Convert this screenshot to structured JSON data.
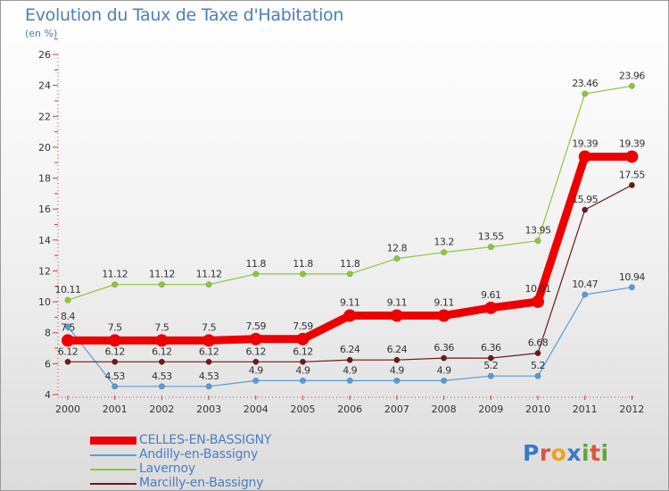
{
  "header": {
    "title": "Evolution du Taux de Taxe d'Habitation",
    "subtitle": "(en %)"
  },
  "logo": {
    "text": "Proxiti",
    "letters": [
      "P",
      "r",
      "o",
      "x",
      "i",
      "t",
      "i"
    ],
    "colors": [
      "#3b78c8",
      "#e0533a",
      "#f0a21c",
      "#3b78c8",
      "#5da83b",
      "#e0533a",
      "#5da83b"
    ]
  },
  "chart_data": {
    "type": "line",
    "categories": [
      "2000",
      "2001",
      "2002",
      "2003",
      "2004",
      "2005",
      "2006",
      "2007",
      "2008",
      "2009",
      "2010",
      "2011",
      "2012"
    ],
    "ylim": [
      4,
      26
    ],
    "yticks": [
      "4",
      "6",
      "8",
      "10",
      "12",
      "14",
      "16",
      "18",
      "20",
      "22",
      "24",
      "26"
    ],
    "grid": false,
    "legend_placement": "bottom-left",
    "series": [
      {
        "name": "Lavernoy",
        "color": "#8cc63f",
        "values": [
          10.11,
          11.12,
          11.12,
          11.12,
          11.8,
          11.8,
          11.8,
          12.8,
          13.2,
          13.55,
          13.95,
          23.46,
          23.96
        ],
        "labels": [
          "10.11",
          "11.12",
          "11.12",
          "11.12",
          "11.8",
          "11.8",
          "11.8",
          "12.8",
          "13.2",
          "13.55",
          "13.95",
          "23.46",
          "23.96"
        ]
      },
      {
        "name": "Andilly-en-Bassigny",
        "color": "#5b9bd5",
        "values": [
          8.4,
          4.53,
          4.53,
          4.53,
          4.9,
          4.9,
          4.9,
          4.9,
          4.9,
          5.2,
          5.2,
          10.47,
          10.94
        ],
        "labels": [
          "8.4",
          "4.53",
          "4.53",
          "4.53",
          "4.9",
          "4.9",
          "4.9",
          "4.9",
          "4.9",
          "5.2",
          "5.2",
          "10.47",
          "10.94"
        ]
      },
      {
        "name": "Marcilly-en-Bassigny",
        "color": "#6b1a1a",
        "values": [
          6.12,
          6.12,
          6.12,
          6.12,
          6.12,
          6.12,
          6.24,
          6.24,
          6.36,
          6.36,
          6.68,
          15.95,
          17.55
        ],
        "labels": [
          "6.12",
          "6.12",
          "6.12",
          "6.12",
          "6.12",
          "6.12",
          "6.24",
          "6.24",
          "6.36",
          "6.36",
          "6.68",
          "15.95",
          "17.55"
        ]
      },
      {
        "name": "CELLES-EN-BASSIGNY",
        "color": "#ee0000",
        "values": [
          7.5,
          7.5,
          7.5,
          7.5,
          7.59,
          7.59,
          9.11,
          9.11,
          9.11,
          9.61,
          10.01,
          19.39,
          19.39
        ],
        "labels": [
          "7.5",
          "7.5",
          "7.5",
          "7.5",
          "7.59",
          "7.59",
          "9.11",
          "9.11",
          "9.11",
          "9.61",
          "10.01",
          "19.39",
          "19.39"
        ]
      }
    ],
    "legend": [
      "CELLES-EN-BASSIGNY",
      "Andilly-en-Bassigny",
      "Lavernoy",
      "Marcilly-en-Bassigny"
    ]
  }
}
